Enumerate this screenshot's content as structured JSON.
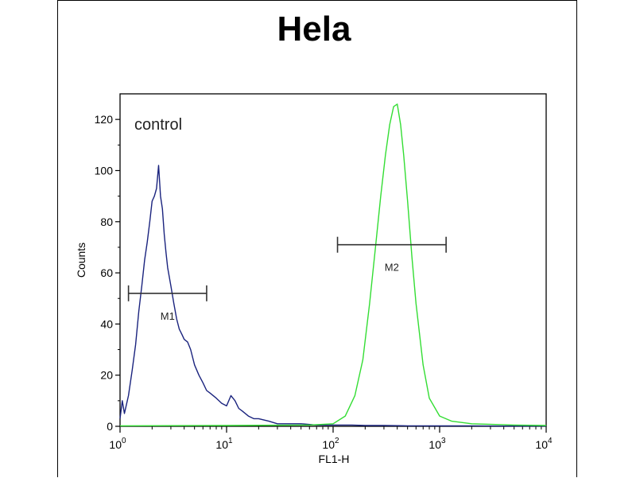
{
  "chart_data": {
    "type": "line",
    "title": "Hela",
    "xlabel": "FL1-H",
    "ylabel": "Counts",
    "x_scale": "log",
    "xlim": [
      1,
      10000
    ],
    "ylim": [
      0,
      130
    ],
    "x_tick_labels": [
      {
        "value": 1,
        "base": "10",
        "exp": "0"
      },
      {
        "value": 10,
        "base": "10",
        "exp": "1"
      },
      {
        "value": 100,
        "base": "10",
        "exp": "2"
      },
      {
        "value": 1000,
        "base": "10",
        "exp": "3"
      },
      {
        "value": 10000,
        "base": "10",
        "exp": "4"
      }
    ],
    "y_ticks": [
      0,
      20,
      40,
      60,
      80,
      100,
      120
    ],
    "annotation": "control",
    "markers": [
      {
        "label": "M1",
        "x_start": 1.2,
        "x_end": 6.5,
        "y": 52
      },
      {
        "label": "M2",
        "x_start": 110,
        "x_end": 1150,
        "y": 71
      }
    ],
    "series": [
      {
        "color": "#1a237e",
        "x": [
          1.0,
          1.05,
          1.1,
          1.2,
          1.3,
          1.4,
          1.5,
          1.6,
          1.7,
          1.8,
          1.9,
          2.0,
          2.1,
          2.2,
          2.3,
          2.4,
          2.5,
          2.6,
          2.7,
          2.8,
          3.0,
          3.2,
          3.4,
          3.6,
          3.8,
          4.0,
          4.3,
          4.6,
          5.0,
          5.5,
          6.0,
          6.5,
          7.0,
          8.0,
          9.0,
          10.0,
          11.0,
          12.0,
          13.0,
          14.0,
          16.0,
          18.0,
          20.0,
          25.0,
          30.0,
          40.0,
          50.0,
          70.0,
          100.0,
          150.0,
          200.0,
          300.0,
          500.0,
          1000.0,
          2000.0,
          5000.0,
          10000.0
        ],
        "y": [
          3,
          10,
          5,
          12,
          22,
          32,
          45,
          55,
          65,
          72,
          80,
          88,
          90,
          93,
          102,
          90,
          85,
          75,
          68,
          62,
          55,
          48,
          42,
          38,
          36,
          34,
          33,
          30,
          24,
          20,
          17,
          14,
          13,
          11,
          9,
          8,
          12,
          10,
          7,
          6,
          4,
          3,
          3,
          2,
          1,
          1,
          1,
          0.5,
          0.5,
          0.5,
          0.3,
          0.3,
          0.2,
          0.2,
          0.2,
          0.1,
          0.1
        ]
      },
      {
        "color": "#33dd33",
        "x": [
          1.0,
          10.0,
          60.0,
          100.0,
          130.0,
          160.0,
          190.0,
          220.0,
          250.0,
          280.0,
          310.0,
          340.0,
          370.0,
          400.0,
          430.0,
          460.0,
          500.0,
          550.0,
          600.0,
          700.0,
          800.0,
          1000.0,
          1300.0,
          2000.0,
          5000.0,
          10000.0
        ],
        "y": [
          0.2,
          0.3,
          0.5,
          1,
          4,
          12,
          26,
          48,
          70,
          90,
          106,
          118,
          125,
          126,
          118,
          106,
          88,
          66,
          48,
          24,
          11,
          4,
          2,
          1,
          0.5,
          0.3
        ]
      }
    ]
  }
}
